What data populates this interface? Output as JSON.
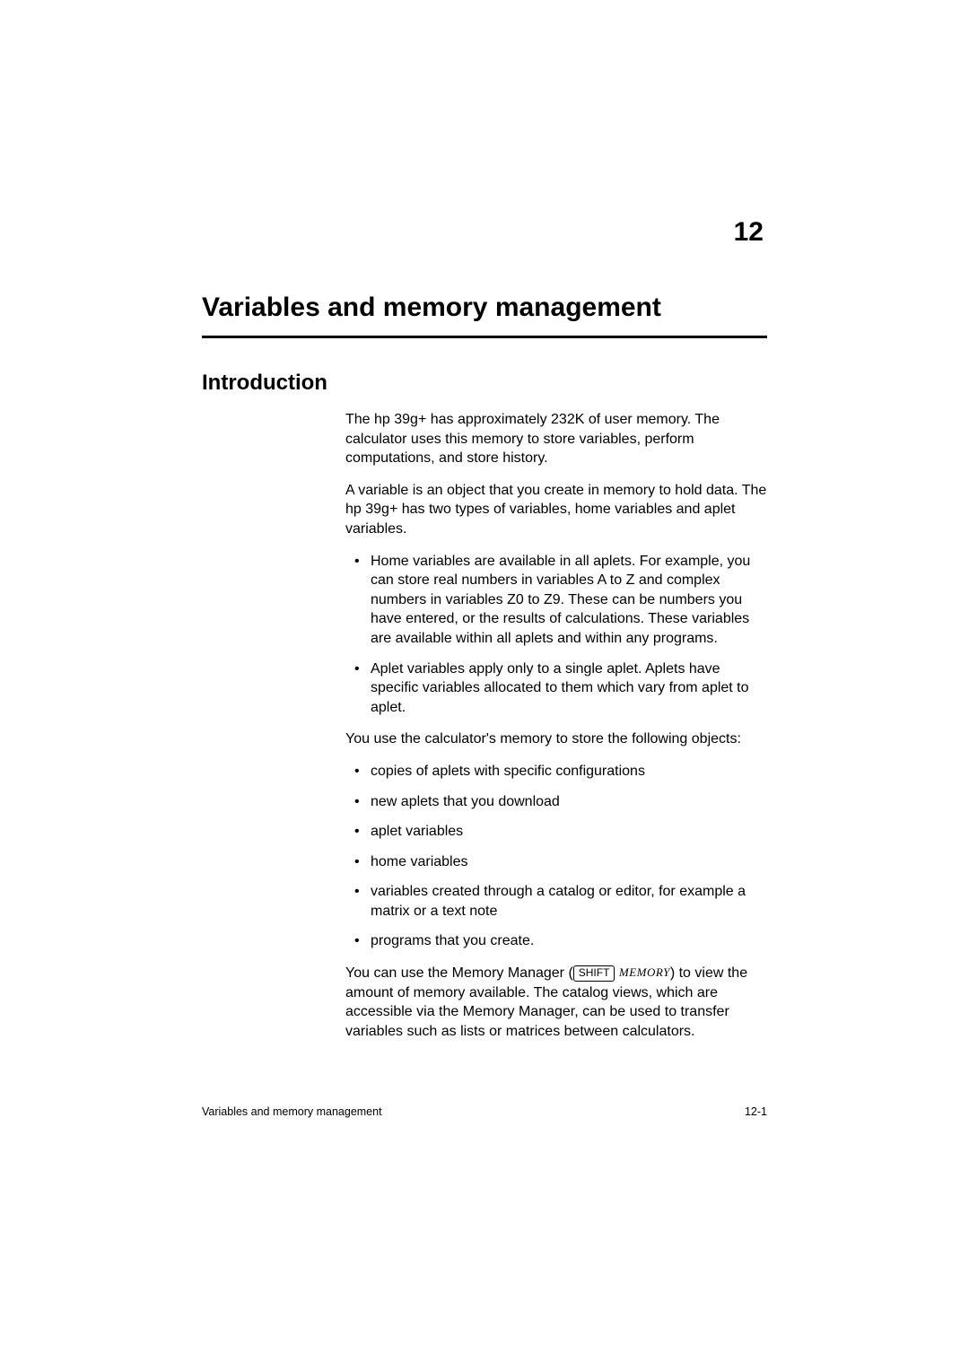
{
  "chapter": {
    "number": "12",
    "title": "Variables and memory management"
  },
  "section": {
    "title": "Introduction"
  },
  "body": {
    "p1": "The hp 39g+ has approximately 232K of user memory. The calculator uses this memory to store variables, perform computations, and store history.",
    "p2": "A variable is an object that you create in memory to hold data. The hp 39g+ has two types of variables, home variables and aplet variables.",
    "bullets1": {
      "b1": "Home variables are available in all aplets. For example, you can store real numbers in variables A to Z and complex numbers in variables Z0 to Z9. These can be numbers you have entered, or the results of calculations. These variables are available within all aplets and within any programs.",
      "b2": "Aplet variables apply only to a single aplet. Aplets have specific variables allocated to them which vary from aplet to aplet."
    },
    "p3": "You use the calculator's memory to store the following objects:",
    "bullets2": {
      "b1": "copies of aplets with specific configurations",
      "b2": "new aplets that you download",
      "b3": "aplet variables",
      "b4": "home variables",
      "b5": "variables created through a catalog or editor, for example a matrix or a text note",
      "b6": "programs that you create."
    },
    "p4_pre": "You can use the Memory Manager (",
    "key_shift": "SHIFT",
    "key_memory": "MEMORY",
    "p4_post": ") to view the amount of memory available. The catalog views, which are accessible via the Memory Manager, can be used to transfer variables such as lists or matrices between calculators."
  },
  "footer": {
    "left": "Variables and memory management",
    "right": "12-1"
  }
}
